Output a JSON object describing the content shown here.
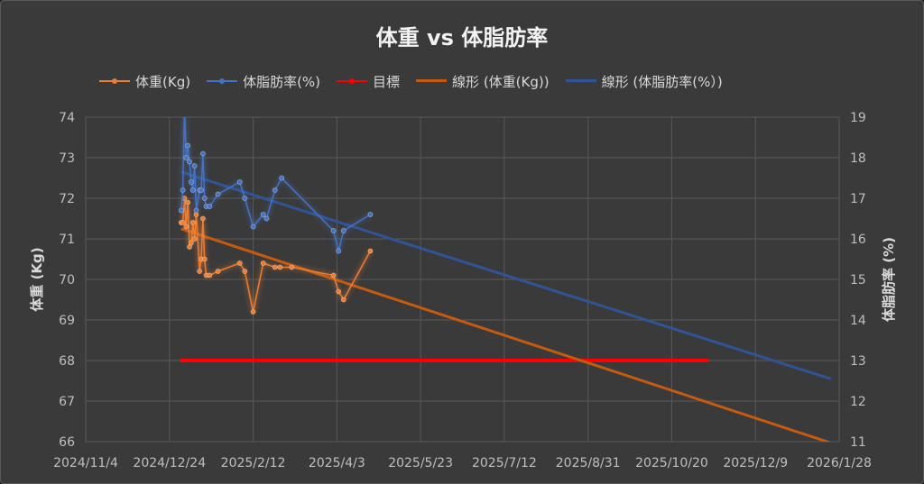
{
  "chart_data": {
    "type": "line",
    "title": "体重 vs 体脂肪率",
    "ylabel": "体重 (Kg)",
    "y2label": "体脂肪率 (%)",
    "xlim": [
      "2024-11-04",
      "2026-01-28"
    ],
    "ylim": [
      66,
      74
    ],
    "y2lim": [
      11,
      19
    ],
    "x_ticks": [
      "2024/11/4",
      "2024/12/24",
      "2025/2/12",
      "2025/4/3",
      "2025/5/23",
      "2025/7/12",
      "2025/8/31",
      "2025/10/20",
      "2025/12/9",
      "2026/1/28"
    ],
    "y_ticks": [
      66,
      67,
      68,
      69,
      70,
      71,
      72,
      73,
      74
    ],
    "y2_ticks": [
      11,
      12,
      13,
      14,
      15,
      16,
      17,
      18,
      19
    ],
    "grid": true,
    "legend_position": "top",
    "series": [
      {
        "name": "体重(Kg)",
        "axis": "left",
        "color": "#ed7d31",
        "x": [
          "2024-12-31",
          "2025-01-01",
          "2025-01-02",
          "2025-01-03",
          "2025-01-04",
          "2025-01-05",
          "2025-01-06",
          "2025-01-07",
          "2025-01-08",
          "2025-01-09",
          "2025-01-11",
          "2025-01-12",
          "2025-01-13",
          "2025-01-14",
          "2025-01-15",
          "2025-01-17",
          "2025-01-22",
          "2025-02-04",
          "2025-02-07",
          "2025-02-12",
          "2025-02-18",
          "2025-02-25",
          "2025-02-28",
          "2025-03-07",
          "2025-04-01",
          "2025-04-04",
          "2025-04-07",
          "2025-04-23"
        ],
        "values": [
          71.4,
          71.4,
          72.0,
          71.3,
          71.9,
          70.8,
          70.9,
          71.4,
          71.0,
          71.6,
          70.2,
          70.5,
          71.5,
          70.5,
          70.1,
          70.1,
          70.2,
          70.4,
          70.2,
          69.2,
          70.4,
          70.3,
          70.3,
          70.3,
          70.1,
          69.7,
          69.5,
          70.7
        ]
      },
      {
        "name": "体脂肪率(%)",
        "axis": "right",
        "color": "#4472c4",
        "x": [
          "2024-12-31",
          "2025-01-01",
          "2025-01-02",
          "2025-01-03",
          "2025-01-04",
          "2025-01-05",
          "2025-01-06",
          "2025-01-07",
          "2025-01-08",
          "2025-01-09",
          "2025-01-11",
          "2025-01-12",
          "2025-01-13",
          "2025-01-14",
          "2025-01-15",
          "2025-01-17",
          "2025-01-22",
          "2025-02-04",
          "2025-02-07",
          "2025-02-12",
          "2025-02-18",
          "2025-02-20",
          "2025-02-25",
          "2025-03-01",
          "2025-04-01",
          "2025-04-04",
          "2025-04-07",
          "2025-04-23"
        ],
        "values": [
          16.7,
          17.2,
          19.2,
          18.0,
          18.3,
          17.9,
          17.4,
          17.2,
          17.8,
          16.7,
          17.2,
          17.2,
          18.1,
          17.0,
          16.8,
          16.8,
          17.1,
          17.4,
          17.0,
          16.3,
          16.6,
          16.5,
          17.2,
          17.5,
          16.2,
          15.7,
          16.2,
          16.6
        ]
      },
      {
        "name": "目標",
        "axis": "left",
        "color": "#ff0000",
        "x": [
          "2024-12-31",
          "2025-11-10"
        ],
        "values": [
          68,
          68
        ]
      },
      {
        "name": "線形 (体重(Kg))",
        "axis": "left",
        "type": "trendline",
        "color": "#c55a11",
        "x": [
          "2024-12-31",
          "2026-01-23"
        ],
        "values": [
          71.25,
          65.97
        ]
      },
      {
        "name": "線形 (体脂肪率(%）)",
        "axis": "right",
        "type": "trendline",
        "color": "#2f5597",
        "x": [
          "2024-12-31",
          "2026-01-23"
        ],
        "values": [
          17.65,
          12.55
        ]
      }
    ]
  }
}
